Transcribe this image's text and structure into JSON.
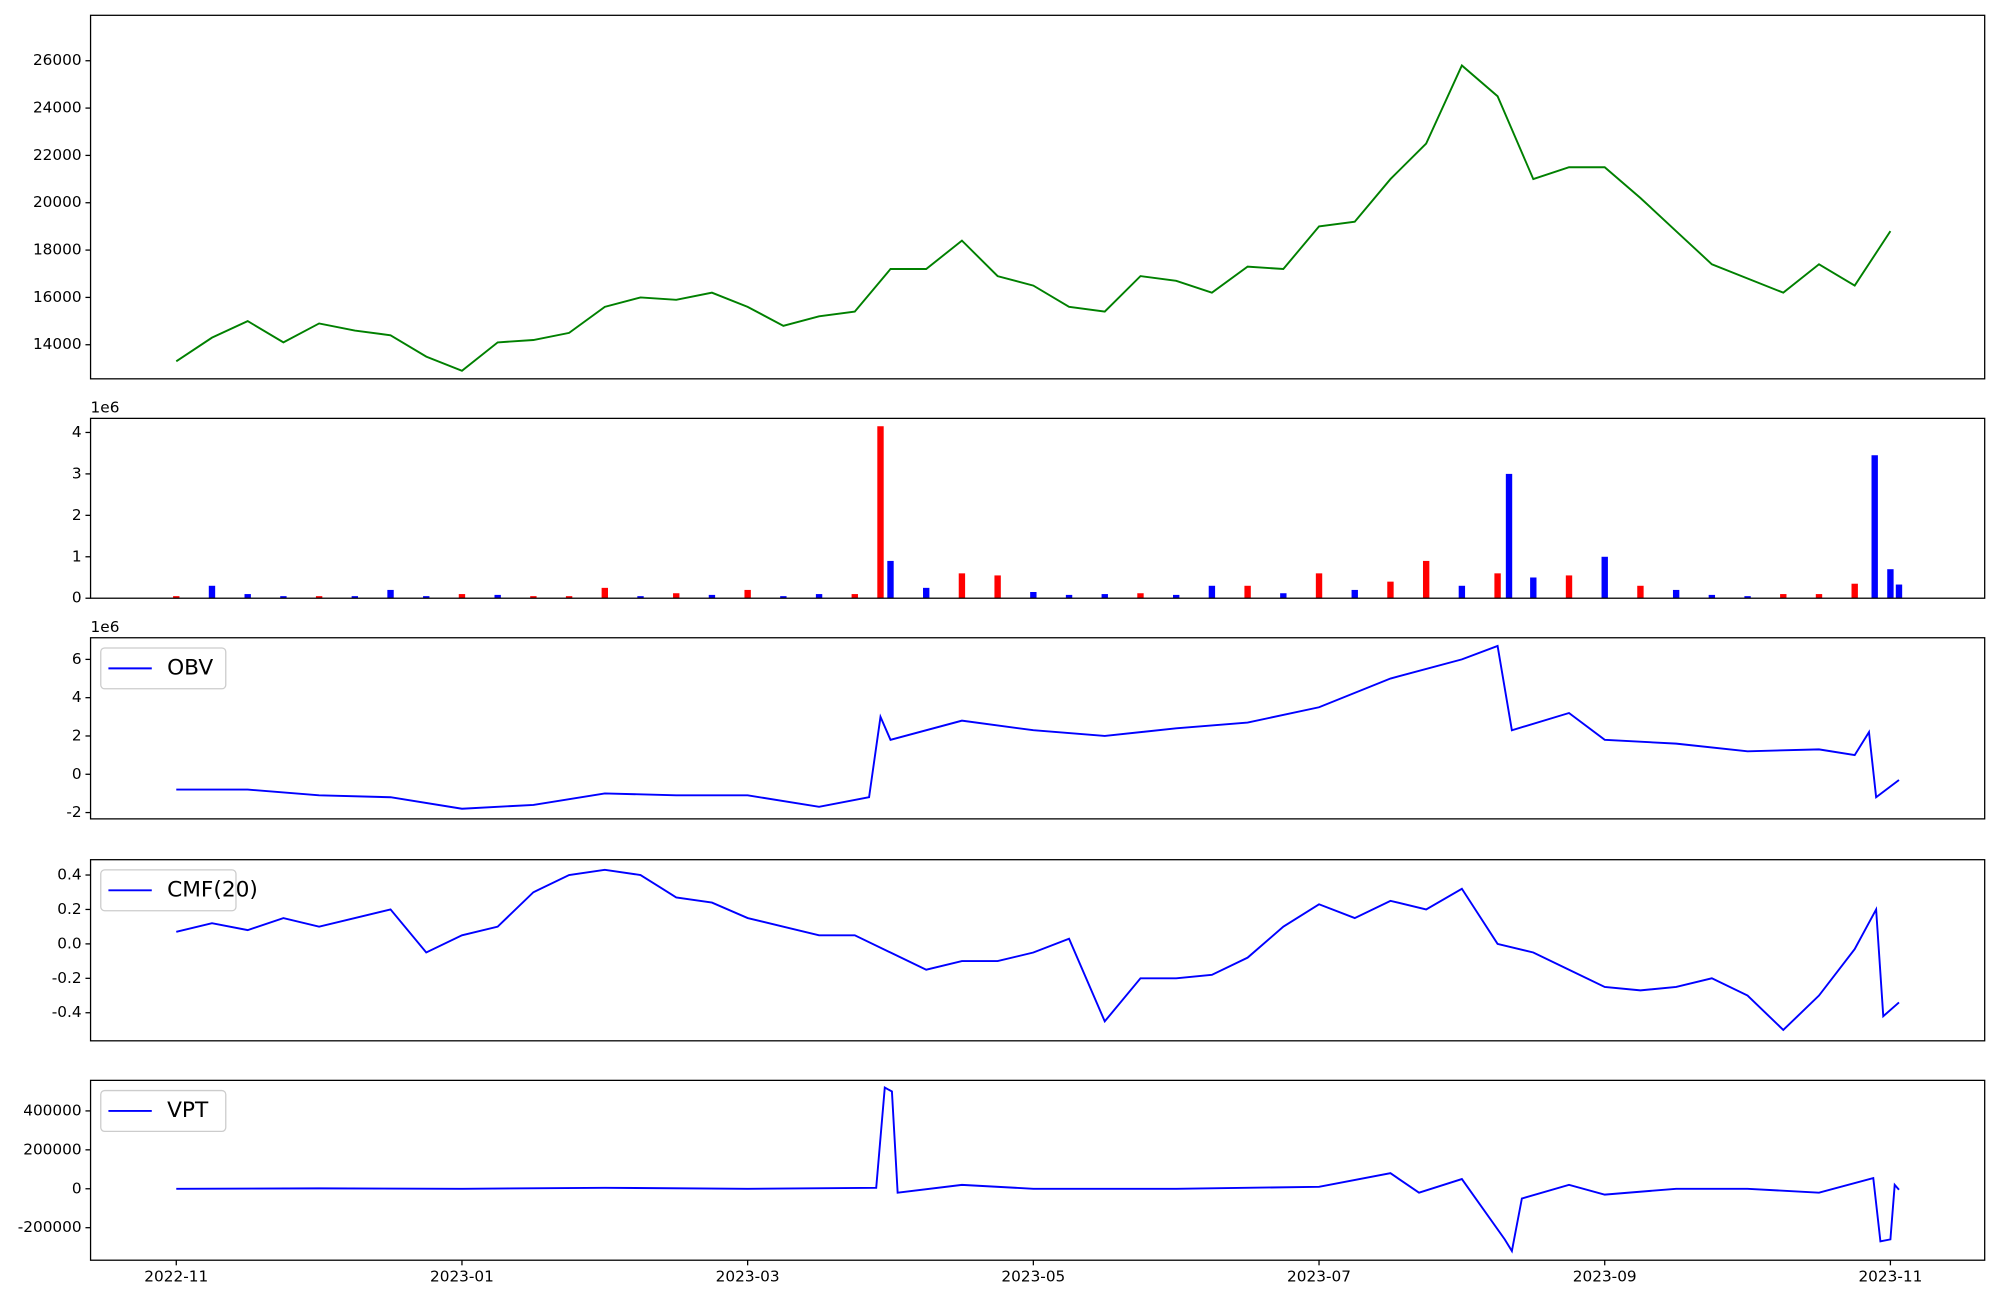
{
  "chart_data": [
    {
      "type": "line",
      "color": "#008000",
      "x": [
        0,
        0.25,
        0.5,
        0.75,
        1,
        1.25,
        1.5,
        1.75,
        2,
        2.25,
        2.5,
        2.75,
        3,
        3.25,
        3.5,
        3.75,
        4,
        4.25,
        4.5,
        4.75,
        5,
        5.25,
        5.5,
        5.75,
        6,
        6.25,
        6.5,
        6.75,
        7,
        7.25,
        7.5,
        7.75,
        8,
        8.25,
        8.5,
        8.75,
        9,
        9.25,
        9.5,
        9.75,
        10,
        10.25,
        10.5,
        10.75,
        11,
        11.25,
        11.5,
        11.75,
        12
      ],
      "values": [
        13300,
        14300,
        15000,
        14100,
        14900,
        14600,
        14400,
        13500,
        12900,
        14100,
        14200,
        14500,
        15600,
        16000,
        15900,
        16200,
        15600,
        14800,
        15200,
        15400,
        17200,
        17200,
        18400,
        16900,
        16500,
        15600,
        15400,
        16900,
        16700,
        16200,
        17300,
        17200,
        19000,
        19200,
        21000,
        22500,
        25800,
        24500,
        21000,
        21500,
        21500,
        20200,
        18800,
        17400,
        16800,
        16200,
        17400,
        16500,
        18800
      ],
      "xlim": [
        -0.6,
        12.66
      ],
      "ylim": [
        12560,
        27920
      ],
      "yticks": [
        14000,
        16000,
        18000,
        20000,
        22000,
        24000,
        26000
      ]
    },
    {
      "type": "bar",
      "offset_label": "1e6",
      "x": [
        0,
        0.25,
        0.5,
        0.75,
        1,
        1.25,
        1.5,
        1.75,
        2,
        2.25,
        2.5,
        2.75,
        3,
        3.25,
        3.5,
        3.75,
        4,
        4.25,
        4.5,
        4.75,
        4.93,
        5,
        5.25,
        5.5,
        5.75,
        6,
        6.25,
        6.5,
        6.75,
        7,
        7.25,
        7.5,
        7.75,
        8,
        8.25,
        8.5,
        8.75,
        9,
        9.25,
        9.33,
        9.5,
        9.75,
        10,
        10.25,
        10.5,
        10.75,
        11,
        11.25,
        11.5,
        11.75,
        11.89,
        12,
        12.06
      ],
      "values": [
        0.05,
        0.3,
        0.1,
        0.05,
        0.05,
        0.05,
        0.2,
        0.05,
        0.1,
        0.08,
        0.05,
        0.05,
        0.25,
        0.05,
        0.12,
        0.08,
        0.2,
        0.05,
        0.1,
        0.1,
        4.15,
        0.9,
        0.25,
        0.6,
        0.55,
        0.15,
        0.08,
        0.1,
        0.12,
        0.08,
        0.3,
        0.3,
        0.12,
        0.6,
        0.2,
        0.4,
        0.9,
        0.3,
        0.6,
        3.0,
        0.5,
        0.55,
        1.0,
        0.3,
        0.2,
        0.08,
        0.05,
        0.1,
        0.1,
        0.35,
        3.45,
        0.7,
        0.33
      ],
      "colors": [
        "red",
        "blue",
        "blue",
        "blue",
        "red",
        "blue",
        "blue",
        "blue",
        "red",
        "blue",
        "red",
        "red",
        "red",
        "blue",
        "red",
        "blue",
        "red",
        "blue",
        "blue",
        "red",
        "red",
        "blue",
        "blue",
        "red",
        "red",
        "blue",
        "blue",
        "blue",
        "red",
        "blue",
        "blue",
        "red",
        "blue",
        "red",
        "blue",
        "red",
        "red",
        "blue",
        "red",
        "blue",
        "blue",
        "red",
        "blue",
        "red",
        "blue",
        "blue",
        "blue",
        "red",
        "red",
        "red",
        "blue",
        "blue",
        "blue"
      ],
      "xlim": [
        -0.6,
        12.66
      ],
      "ylim": [
        0,
        4.34
      ],
      "yticks": [
        0,
        1,
        2,
        3,
        4
      ]
    },
    {
      "type": "line",
      "offset_label": "1e6",
      "legend": "upper left",
      "x": [
        0,
        0.5,
        1,
        1.5,
        2,
        2.5,
        3,
        3.5,
        4,
        4.5,
        4.85,
        4.93,
        5,
        5.5,
        6,
        6.5,
        7,
        7.5,
        8,
        8.5,
        9,
        9.25,
        9.35,
        9.75,
        10,
        10.5,
        11,
        11.5,
        11.75,
        11.85,
        11.9,
        12.06
      ],
      "series": [
        {
          "name": "OBV",
          "color": "#0000ff",
          "values": [
            -0.8,
            -0.8,
            -1.1,
            -1.2,
            -1.8,
            -1.6,
            -1.0,
            -1.1,
            -1.1,
            -1.7,
            -1.2,
            3.0,
            1.8,
            2.8,
            2.3,
            2.0,
            2.4,
            2.7,
            3.5,
            5.0,
            6.0,
            6.7,
            2.3,
            3.2,
            1.8,
            1.6,
            1.2,
            1.3,
            1.0,
            2.2,
            -1.2,
            -0.3
          ]
        }
      ],
      "xlim": [
        -0.6,
        12.66
      ],
      "ylim": [
        -2.33,
        7.13
      ],
      "yticks": [
        -2,
        0,
        2,
        4,
        6
      ]
    },
    {
      "type": "line",
      "legend": "upper left",
      "x": [
        0,
        0.25,
        0.5,
        0.75,
        1,
        1.25,
        1.5,
        1.75,
        2,
        2.25,
        2.5,
        2.75,
        3,
        3.25,
        3.5,
        3.75,
        4,
        4.25,
        4.5,
        4.75,
        5,
        5.25,
        5.5,
        5.75,
        6,
        6.25,
        6.5,
        6.75,
        7,
        7.25,
        7.5,
        7.75,
        8,
        8.25,
        8.5,
        8.75,
        9,
        9.25,
        9.5,
        9.75,
        10,
        10.25,
        10.5,
        10.75,
        11,
        11.25,
        11.5,
        11.75,
        11.9,
        11.95,
        12.06
      ],
      "series": [
        {
          "name": "CMF(20)",
          "color": "#0000ff",
          "values": [
            0.07,
            0.12,
            0.08,
            0.15,
            0.1,
            0.15,
            0.2,
            -0.05,
            0.05,
            0.1,
            0.3,
            0.4,
            0.43,
            0.4,
            0.27,
            0.24,
            0.15,
            0.1,
            0.05,
            0.05,
            -0.05,
            -0.15,
            -0.1,
            -0.1,
            -0.05,
            0.03,
            -0.45,
            -0.2,
            -0.2,
            -0.18,
            -0.08,
            0.1,
            0.23,
            0.15,
            0.25,
            0.2,
            0.32,
            0.0,
            -0.05,
            -0.15,
            -0.25,
            -0.27,
            -0.25,
            -0.2,
            -0.3,
            -0.5,
            -0.3,
            -0.03,
            0.2,
            -0.42,
            -0.34
          ]
        }
      ],
      "xlim": [
        -0.6,
        12.66
      ],
      "ylim": [
        -0.563,
        0.489
      ],
      "yticks": [
        -0.4,
        -0.2,
        {
          "value": 0,
          "label": "0.0"
        },
        0.2,
        0.4
      ]
    },
    {
      "type": "line",
      "legend": "upper left",
      "x": [
        0,
        1,
        2,
        3,
        4,
        4.9,
        4.96,
        5.01,
        5.05,
        5.5,
        6,
        7,
        8,
        8.5,
        8.7,
        9,
        9.3,
        9.35,
        9.42,
        9.75,
        10,
        10.5,
        11,
        11.5,
        11.88,
        11.93,
        12,
        12.03,
        12.06
      ],
      "series": [
        {
          "name": "VPT",
          "color": "#0000ff",
          "values": [
            0,
            2000,
            0,
            5000,
            0,
            5000,
            520000,
            500000,
            -20000,
            20000,
            0,
            0,
            10000,
            80000,
            -20000,
            50000,
            -260000,
            -320000,
            -50000,
            20000,
            -30000,
            0,
            0,
            -20000,
            55000,
            -270000,
            -260000,
            20000,
            -5000
          ]
        }
      ],
      "xlim": [
        -0.6,
        12.66
      ],
      "ylim": [
        -367000,
        557000
      ],
      "yticks": [
        -200000,
        0,
        200000,
        400000
      ],
      "xticks": [
        {
          "value": 0,
          "label": "2022-11"
        },
        {
          "value": 2,
          "label": "2023-01"
        },
        {
          "value": 4,
          "label": "2023-03"
        },
        {
          "value": 6,
          "label": "2023-05"
        },
        {
          "value": 8,
          "label": "2023-07"
        },
        {
          "value": 10,
          "label": "2023-09"
        },
        {
          "value": 12,
          "label": "2023-11"
        }
      ]
    }
  ]
}
